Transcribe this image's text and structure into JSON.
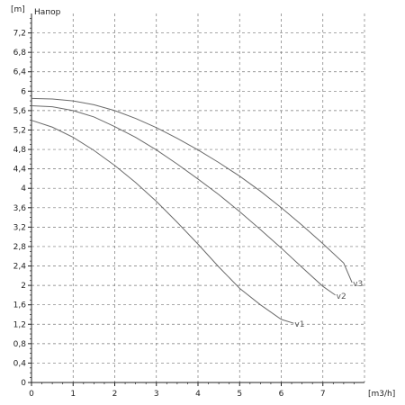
{
  "chart_data": {
    "type": "line",
    "title": "Напор",
    "ylabel": "[m]",
    "xlabel": "[m3/h]",
    "xlim": [
      0,
      8
    ],
    "ylim": [
      0,
      7.6
    ],
    "x_ticks": [
      "0",
      "1",
      "2",
      "3",
      "4",
      "5",
      "6",
      "7"
    ],
    "y_ticks": [
      "0",
      "0,4",
      "0,8",
      "1,2",
      "1,6",
      "2",
      "2,4",
      "2,8",
      "3,2",
      "3,6",
      "4",
      "4,4",
      "4,8",
      "5,2",
      "5,6",
      "6",
      "6,4",
      "6,8",
      "7,2"
    ],
    "grid": true,
    "series": [
      {
        "name": "v1",
        "x": [
          0,
          0.5,
          1,
          1.5,
          2,
          2.5,
          3,
          3.5,
          4,
          4.5,
          5,
          5.5,
          6,
          6.3
        ],
        "y": [
          5.4,
          5.26,
          5.05,
          4.78,
          4.47,
          4.12,
          3.73,
          3.3,
          2.85,
          2.38,
          1.94,
          1.6,
          1.3,
          1.22
        ]
      },
      {
        "name": "v2",
        "x": [
          0,
          0.5,
          1,
          1.5,
          2,
          2.5,
          3,
          3.5,
          4,
          4.5,
          5,
          5.5,
          6,
          6.5,
          7,
          7.3
        ],
        "y": [
          5.7,
          5.68,
          5.6,
          5.47,
          5.27,
          5.05,
          4.79,
          4.5,
          4.19,
          3.87,
          3.52,
          3.15,
          2.77,
          2.37,
          1.98,
          1.8
        ]
      },
      {
        "name": "v3",
        "x": [
          0,
          0.5,
          1,
          1.5,
          2,
          2.5,
          3,
          3.5,
          4,
          4.5,
          5,
          5.5,
          6,
          6.5,
          7,
          7.5,
          7.7
        ],
        "y": [
          5.85,
          5.84,
          5.8,
          5.72,
          5.6,
          5.44,
          5.25,
          5.03,
          4.79,
          4.53,
          4.25,
          3.94,
          3.6,
          3.24,
          2.86,
          2.46,
          2.06
        ]
      }
    ]
  }
}
